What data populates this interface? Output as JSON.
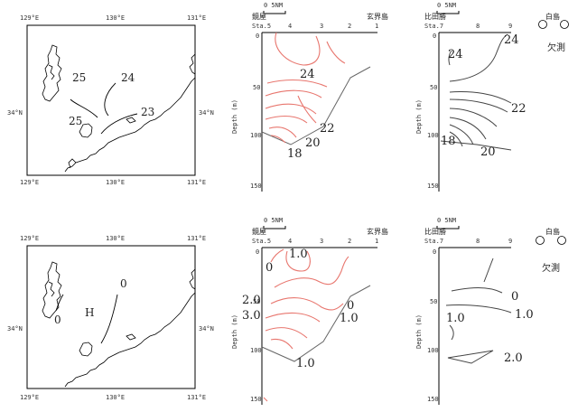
{
  "panels": {
    "map_top": {
      "lon_labels_top": [
        "129°E",
        "130°E",
        "131°E"
      ],
      "lon_labels_bottom": [
        "129°E",
        "130°E",
        "131°E"
      ],
      "lat_label_left": "34°N",
      "lat_label_right": "34°N",
      "contour_labels": [
        "25",
        "24",
        "25",
        "23"
      ]
    },
    "map_bottom": {
      "lon_labels_top": [
        "129°E",
        "130°E",
        "131°E"
      ],
      "lon_labels_bottom": [
        "129°E",
        "130°E",
        "131°E"
      ],
      "lat_label_left": "34°N",
      "lat_label_right": "34°N",
      "contour_labels": [
        "0",
        "0"
      ],
      "center_label": "H"
    },
    "section_a_top": {
      "scale": "0  5NM",
      "left_place": "鏡屋",
      "right_place": "玄界島",
      "station_label": "Sta.5",
      "stations": [
        "4",
        "3",
        "2",
        "1"
      ],
      "depth_ticks": [
        "0",
        "50",
        "100",
        "150"
      ],
      "ylabel": "Depth (m)",
      "contour_labels": [
        "24",
        "22",
        "20",
        "18"
      ]
    },
    "section_b_top": {
      "scale": "0  5NM",
      "left_place": "比田勝",
      "right_place": "白島",
      "station_label": "Sta.7",
      "stations": [
        "8",
        "9"
      ],
      "depth_ticks": [
        "0",
        "50",
        "100",
        "150"
      ],
      "ylabel": "Depth (m)",
      "missing": "欠測",
      "contour_labels": [
        "24",
        "24",
        "22",
        "18",
        "20"
      ]
    },
    "section_a_bottom": {
      "scale": "0  5NM",
      "left_place": "鏡屋",
      "right_place": "玄界島",
      "station_label": "Sta.5",
      "stations": [
        "4",
        "3",
        "2",
        "1"
      ],
      "depth_ticks": [
        "0",
        "50",
        "100",
        "150"
      ],
      "ylabel": "Depth (m)",
      "contour_labels": [
        "1.0",
        "0",
        "2.0",
        "3.0",
        "0",
        "1.0",
        "1.0"
      ]
    },
    "section_b_bottom": {
      "scale": "0  5NM",
      "left_place": "比田勝",
      "right_place": "白島",
      "station_label": "Sta.7",
      "stations": [
        "8",
        "9"
      ],
      "depth_ticks": [
        "0",
        "50",
        "100",
        "150"
      ],
      "ylabel": "Depth (m)",
      "missing": "欠測",
      "contour_labels": [
        "0",
        "1.0",
        "1.0",
        "2.0"
      ]
    }
  },
  "colors": {
    "frame": "#000000",
    "positive_isoline": "#e8766e",
    "negative_isoline": "#444444"
  }
}
